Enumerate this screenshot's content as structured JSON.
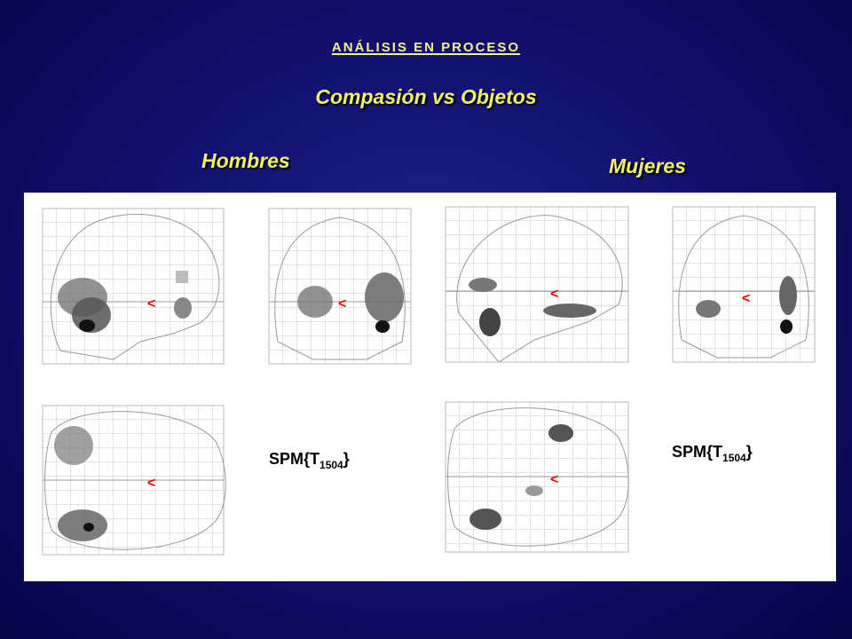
{
  "header": {
    "title": "ANÁLISIS EN PROCESO",
    "subtitle": "Compasión vs Objetos"
  },
  "groups": [
    {
      "label": "Hombres",
      "spm": {
        "prefix": "SPM{T",
        "subscript": "1504",
        "suffix": "}"
      }
    },
    {
      "label": "Mujeres",
      "spm": {
        "prefix": "SPM{T",
        "subscript": "1504",
        "suffix": "}"
      }
    }
  ]
}
